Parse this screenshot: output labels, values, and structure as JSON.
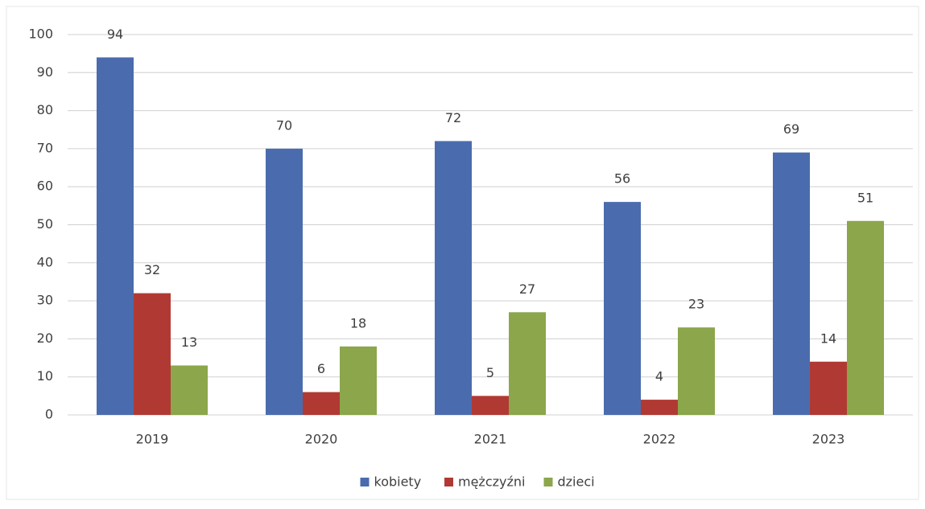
{
  "chart_data": {
    "type": "bar",
    "categories": [
      "2019",
      "2020",
      "2021",
      "2022",
      "2023"
    ],
    "series": [
      {
        "name": "kobiety",
        "color": "#4a6cae",
        "values": [
          94,
          70,
          72,
          56,
          69
        ]
      },
      {
        "name": "mężczyźni",
        "color": "#b03a33",
        "values": [
          32,
          6,
          5,
          4,
          14
        ]
      },
      {
        "name": "dzieci",
        "color": "#8ba64b",
        "values": [
          13,
          18,
          27,
          23,
          51
        ]
      }
    ],
    "ylim": [
      0,
      100
    ],
    "yticks": [
      0,
      10,
      20,
      30,
      40,
      50,
      60,
      70,
      80,
      90,
      100
    ],
    "grid": true,
    "legend": "bottom",
    "data_labels": true
  }
}
